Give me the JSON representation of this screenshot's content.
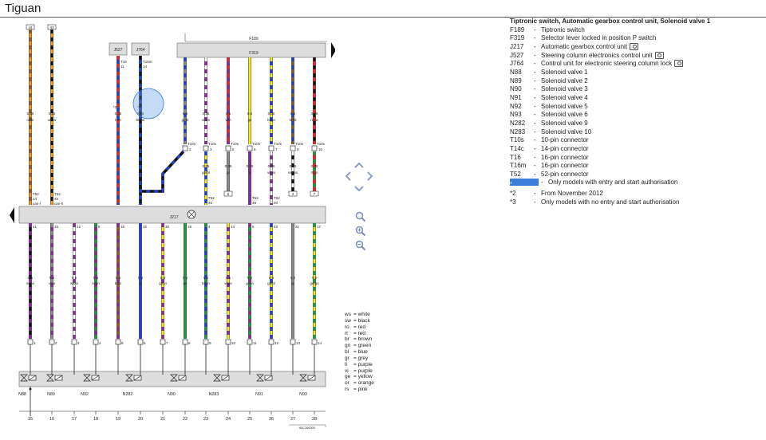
{
  "page_title": "Tiguan",
  "legend": {
    "heading": "Tiptronic switch, Automatic gearbox control unit, Solenoid valve 1",
    "items": [
      {
        "code": "F189",
        "text": "Tiptronic switch",
        "camera": false
      },
      {
        "code": "F319",
        "text": "Selector lever locked in position P switch",
        "camera": false
      },
      {
        "code": "J217",
        "text": "Automatic gearbox control unit",
        "camera": true
      },
      {
        "code": "J527",
        "text": "Steering column electronics control unit",
        "camera": true
      },
      {
        "code": "J764",
        "text": "Control unit for electronic steering column lock",
        "camera": true
      },
      {
        "code": "N88",
        "text": "Solenoid valve 1",
        "camera": false
      },
      {
        "code": "N89",
        "text": "Solenoid valve 2",
        "camera": false
      },
      {
        "code": "N90",
        "text": "Solenoid valve 3",
        "camera": false
      },
      {
        "code": "N91",
        "text": "Solenoid valve 4",
        "camera": false
      },
      {
        "code": "N92",
        "text": "Solenoid valve 5",
        "camera": false
      },
      {
        "code": "N93",
        "text": "Solenoid valve 6",
        "camera": false
      },
      {
        "code": "N282",
        "text": "Solenoid valve 9",
        "camera": false
      },
      {
        "code": "N283",
        "text": "Solenoid valve 10",
        "camera": false
      },
      {
        "code": "T10s",
        "text": "10-pin connector",
        "camera": false
      },
      {
        "code": "T14c",
        "text": "14-pin connector",
        "camera": false
      },
      {
        "code": "T16",
        "text": "16-pin connector",
        "camera": false
      },
      {
        "code": "T16m",
        "text": "16-pin connector",
        "camera": false
      },
      {
        "code": "T52",
        "text": "52-pin connector",
        "camera": false
      },
      {
        "code": "*",
        "text": "Only models with entry and start authorisation",
        "highlight": true,
        "camera": false
      },
      {
        "code": "*2",
        "text": "From November 2012",
        "camera": false
      },
      {
        "code": "*3",
        "text": "Only models with no entry and start authorisation",
        "camera": false
      }
    ]
  },
  "color_key": [
    {
      "abbr": "ws",
      "name": "white"
    },
    {
      "abbr": "sw",
      "name": "black"
    },
    {
      "abbr": "ro",
      "name": "red"
    },
    {
      "abbr": "rt",
      "name": "red"
    },
    {
      "abbr": "br",
      "name": "brown"
    },
    {
      "abbr": "gn",
      "name": "green"
    },
    {
      "abbr": "bl",
      "name": "blue"
    },
    {
      "abbr": "gr",
      "name": "grey"
    },
    {
      "abbr": "li",
      "name": "purple"
    },
    {
      "abbr": "vi",
      "name": "purple"
    },
    {
      "abbr": "ge",
      "name": "yellow"
    },
    {
      "abbr": "or",
      "name": "orange"
    },
    {
      "abbr": "rs",
      "name": "pink"
    }
  ],
  "colors": {
    "bl": "#1f3fd8",
    "sw": "#111111",
    "rt": "#e8262b",
    "ro": "#e8262b",
    "ge": "#f5ea1a",
    "gn": "#1d9b3a",
    "gr": "#8a8a8a",
    "vi": "#8a2a9a",
    "li": "#8a2a9a",
    "ws": "#ffffff",
    "or": "#f29b1d",
    "br": "#8a5a2a",
    "rs": "#f6a8c8",
    "accent": "#3b7dd8"
  },
  "diagram": {
    "components": {
      "F189": "F189",
      "F319": "F319",
      "J217": "J217",
      "J527": "J527",
      "J764": "J764"
    },
    "top_left_wires": [
      {
        "fuse": "44",
        "size": "0.35",
        "color": "or/br",
        "c1": "or",
        "c2": "br",
        "conn": "T52",
        "pin": "24",
        "note": "can-l"
      },
      {
        "fuse": "43",
        "size": "0.35",
        "color": "or/sw",
        "c1": "or",
        "c2": "sw",
        "conn": "T52",
        "pin": "46",
        "note": "can-h"
      }
    ],
    "steering_wires": [
      {
        "conn": "T16",
        "pin": "11",
        "size": "0.35",
        "color": "bl/rt",
        "c1": "bl",
        "c2": "rt",
        "star": "*3"
      },
      {
        "conn": "T16m",
        "pin": "14",
        "size": "0.35",
        "color": "bl/sw",
        "c1": "bl",
        "c2": "sw",
        "star": "*"
      }
    ],
    "upper_wires": [
      {
        "size": "0.5",
        "color": "gr/bl",
        "c1": "gr",
        "c2": "bl",
        "conn1": "T10s",
        "pin1": "2",
        "size2": "",
        "color2": "",
        "conn2": "T52",
        "pin2": ""
      },
      {
        "size": "0.35",
        "color": "vi/ws",
        "c1": "vi",
        "c2": "ws",
        "conn1": "T10s",
        "pin1": "3",
        "size2": "0.35",
        "color2": "ge/bl",
        "c3": "ge",
        "c4": "bl",
        "conn2": "T52",
        "pin2": "40"
      },
      {
        "size": "0.5",
        "color": "vi/rt",
        "c1": "vi",
        "c2": "rt",
        "conn1": "T10s",
        "pin1": "5",
        "size2": "0.35",
        "color2": "gr",
        "c3": "gr",
        "c4": "gr",
        "conn2": "",
        "pin2": "6"
      },
      {
        "size": "0.5",
        "color": "ge",
        "c1": "ge",
        "c2": "ge",
        "conn1": "T10s",
        "pin1": "6",
        "size2": "0.35",
        "color2": "vi",
        "c3": "vi",
        "c4": "vi",
        "conn2": "T52",
        "pin2": "48"
      },
      {
        "size": "0.35",
        "color": "bl/ge",
        "c1": "bl",
        "c2": "ge",
        "conn1": "T10s",
        "pin1": "7",
        "size2": "0.35",
        "color2": "vi/ws",
        "c3": "vi",
        "c4": "ws",
        "conn2": "T52",
        "pin2": "20"
      },
      {
        "size": "0.5",
        "color": "br/bl",
        "c1": "br",
        "c2": "bl",
        "conn1": "T10s",
        "pin1": "9",
        "size2": "0.35",
        "color2": "sw/ws",
        "c3": "sw",
        "c4": "ws",
        "conn2": "",
        "pin2": "4"
      },
      {
        "size": "0.35",
        "color": "rt/sw",
        "c1": "rt",
        "c2": "sw",
        "conn1": "T10s",
        "pin1": "10",
        "size2": "0.35",
        "color2": "rt/gn",
        "c3": "rt",
        "c4": "gn",
        "conn2": "",
        "pin2": "7"
      }
    ],
    "lower_wires": [
      {
        "t52": "41",
        "size": "0.5",
        "color": "sw/vi",
        "c1": "sw",
        "c2": "vi",
        "t14c": "1"
      },
      {
        "t52": "15",
        "size": "0.5",
        "color": "vi/gr",
        "c1": "vi",
        "c2": "gr",
        "t14c": "2"
      },
      {
        "t52": "42",
        "size": "0.5",
        "color": "ws/vi",
        "c1": "ws",
        "c2": "vi",
        "t14c": "3"
      },
      {
        "t52": "6",
        "size": "0.5",
        "color": "vi/gn",
        "c1": "vi",
        "c2": "gn",
        "t14c": "4"
      },
      {
        "t52": "16",
        "size": "0.5",
        "color": "br/vi",
        "c1": "br",
        "c2": "vi",
        "t14c": "5"
      },
      {
        "t52": "32",
        "size": "0.5",
        "color": "bl",
        "c1": "bl",
        "c2": "bl",
        "t14c": "6"
      },
      {
        "t52": "30",
        "size": "0.5",
        "color": "ge/vi",
        "c1": "ge",
        "c2": "vi",
        "t14c": "7"
      },
      {
        "t52": "18",
        "size": "0.5",
        "color": "gn",
        "c1": "gn",
        "c2": "gn",
        "t14c": "8"
      },
      {
        "t52": "4",
        "size": "0.5",
        "color": "bl/gn",
        "c1": "bl",
        "c2": "gn",
        "t14c": "9"
      },
      {
        "t52": "44",
        "size": "0.5",
        "color": "vi/ge",
        "c1": "vi",
        "c2": "ge",
        "t14c": "10"
      },
      {
        "t52": "5",
        "size": "0.5",
        "color": "gn/vi",
        "c1": "gn",
        "c2": "vi",
        "t14c": "11"
      },
      {
        "t52": "43",
        "size": "0.5",
        "color": "ge/bl",
        "c1": "ge",
        "c2": "bl",
        "t14c": "12"
      },
      {
        "t52": "31",
        "size": "0.5",
        "color": "gr",
        "c1": "gr",
        "c2": "gr",
        "t14c": "13"
      },
      {
        "t52": "17",
        "size": "0.5",
        "color": "ge/gn",
        "c1": "ge",
        "c2": "gn",
        "t14c": "14"
      }
    ],
    "solenoids": [
      "N88",
      "N89",
      "N92",
      "N282",
      "N90",
      "N283",
      "N91",
      "N93"
    ],
    "column_numbers": [
      "15",
      "16",
      "17",
      "18",
      "19",
      "20",
      "21",
      "22",
      "23",
      "24",
      "25",
      "26",
      "27",
      "28"
    ],
    "ref_code": "80C260000"
  },
  "nav_icons": [
    "nav-up-icon",
    "nav-left-icon",
    "nav-right-icon",
    "nav-down-icon",
    "zoom-reset-icon",
    "zoom-in-icon",
    "zoom-out-icon"
  ]
}
